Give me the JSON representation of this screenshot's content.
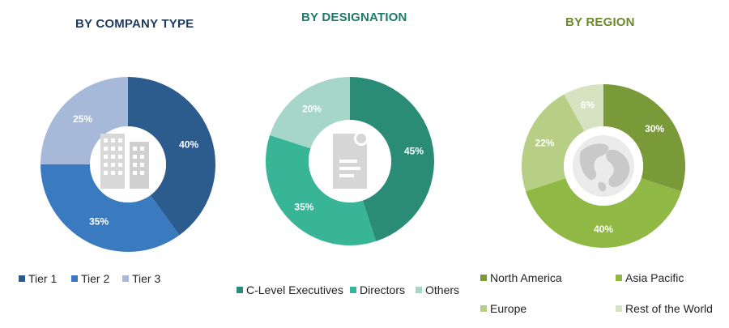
{
  "chart_data": [
    {
      "type": "pie",
      "title": "BY COMPANY TYPE",
      "categories": [
        "Tier 1",
        "Tier 2",
        "Tier 3"
      ],
      "values": [
        40,
        35,
        25
      ],
      "value_labels": [
        "40%",
        "35%",
        "25%"
      ],
      "colors": [
        "#2c5b8e",
        "#3a7abf",
        "#a7b9d8"
      ],
      "center_icon": "office-buildings-icon",
      "legend_position": "bottom"
    },
    {
      "type": "pie",
      "title": "BY DESIGNATION",
      "categories": [
        "C-Level Executives",
        "Directors",
        "Others"
      ],
      "values": [
        45,
        35,
        20
      ],
      "value_labels": [
        "45%",
        "35%",
        "20%"
      ],
      "colors": [
        "#2a8c76",
        "#38b596",
        "#a6d6c8"
      ],
      "center_icon": "document-icon",
      "legend_position": "bottom"
    },
    {
      "type": "pie",
      "title": "BY REGION",
      "categories": [
        "North America",
        "Asia Pacific",
        "Europe",
        "Rest of the World"
      ],
      "values": [
        30,
        40,
        22,
        8
      ],
      "value_labels": [
        "30%",
        "40%",
        "22%",
        "8%"
      ],
      "colors": [
        "#7a9a3a",
        "#8fb845",
        "#b7cf85",
        "#d6e2c0"
      ],
      "center_icon": "globe-icon",
      "legend_position": "bottom"
    }
  ]
}
